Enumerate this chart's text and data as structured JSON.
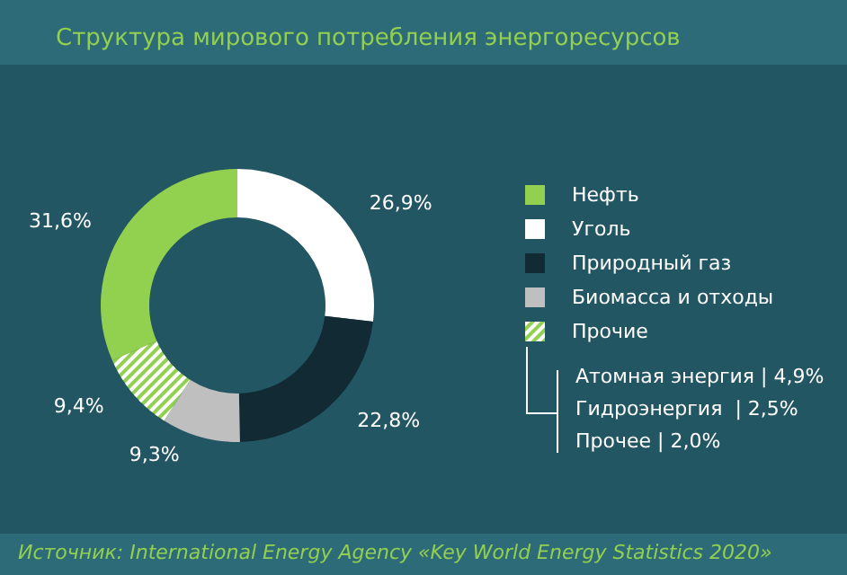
{
  "chart_data": {
    "type": "donut",
    "title": "Структура мирового потребления энергоресурсов",
    "categories": [
      "Нефть",
      "Уголь",
      "Природный газ",
      "Биомасса и отходы",
      "Прочие"
    ],
    "values": [
      31.6,
      26.9,
      22.8,
      9.3,
      9.4
    ],
    "colors": [
      "#92d050",
      "#ffffff",
      "#112a33",
      "#bfbfbf",
      "#92d050"
    ],
    "value_labels": [
      "31,6%",
      "26,9%",
      "22,8%",
      "9,3%",
      "9,4%"
    ],
    "legend": "right",
    "annotations": [
      "Атомная энергия | 4,9%",
      "Гидроэнергия  | 2,5%",
      "Прочее | 2,0%",
      "Источник: International Energy Agency «Key World Energy Statistics 2020»"
    ]
  }
}
